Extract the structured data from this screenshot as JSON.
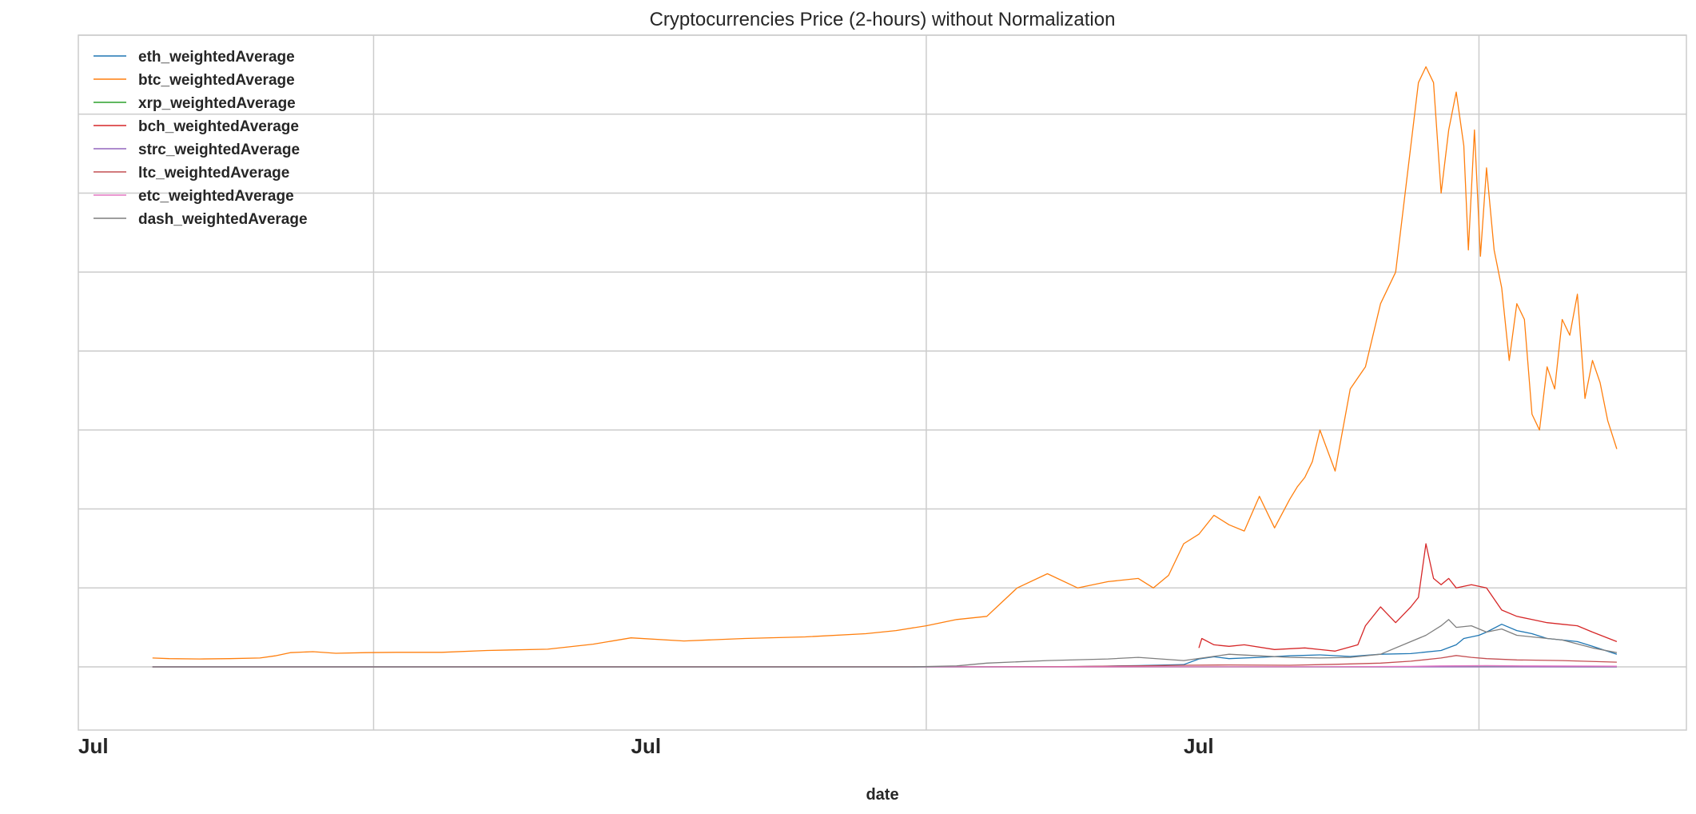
{
  "chart_data": {
    "type": "line",
    "title": "Cryptocurrencies Price (2-hours) without Normalization",
    "xlabel": "date",
    "ylabel": "",
    "x_tick_labels": [
      "Jul",
      "Jul",
      "Jul"
    ],
    "x_tick_values": [
      0,
      365,
      730
    ],
    "x_major_grid": [
      195,
      560,
      925
    ],
    "xlim": [
      0,
      1062
    ],
    "ylim": [
      -2000,
      20000
    ],
    "ygrid": [
      0,
      2500,
      5000,
      7500,
      10000,
      12500,
      15000,
      17500,
      20000
    ],
    "grid": true,
    "legend_position": "upper-left",
    "x_unit": "days since first Jul tick",
    "series": [
      {
        "name": "eth_weightedAverage",
        "color": "#1f77b4",
        "x": [
          49,
          600,
          620,
          640,
          660,
          680,
          700,
          730,
          740,
          750,
          760,
          780,
          800,
          820,
          840,
          860,
          880,
          900,
          910,
          915,
          920,
          925,
          930,
          940,
          950,
          960,
          970,
          980,
          990,
          1000,
          1016
        ],
        "values": [
          0,
          0,
          2,
          5,
          10,
          25,
          40,
          70,
          250,
          320,
          260,
          300,
          350,
          380,
          330,
          400,
          420,
          520,
          700,
          900,
          950,
          1000,
          1100,
          1350,
          1150,
          1050,
          900,
          850,
          800,
          650,
          400
        ]
      },
      {
        "name": "btc_weightedAverage",
        "color": "#ff7f0e",
        "x": [
          49,
          60,
          80,
          100,
          120,
          130,
          140,
          155,
          170,
          190,
          210,
          240,
          270,
          310,
          340,
          365,
          400,
          440,
          480,
          520,
          540,
          560,
          580,
          600,
          620,
          640,
          660,
          680,
          700,
          710,
          720,
          730,
          740,
          750,
          760,
          770,
          780,
          790,
          800,
          805,
          810,
          815,
          820,
          830,
          840,
          850,
          860,
          870,
          875,
          880,
          885,
          890,
          895,
          900,
          905,
          910,
          915,
          918,
          922,
          926,
          930,
          935,
          940,
          945,
          950,
          955,
          960,
          965,
          970,
          975,
          980,
          985,
          990,
          995,
          1000,
          1005,
          1010,
          1016
        ],
        "values": [
          280,
          260,
          250,
          260,
          280,
          350,
          450,
          480,
          430,
          450,
          460,
          460,
          520,
          560,
          720,
          920,
          820,
          900,
          950,
          1050,
          1150,
          1300,
          1500,
          1600,
          2500,
          2950,
          2500,
          2700,
          2800,
          2500,
          2900,
          3900,
          4200,
          4800,
          4500,
          4300,
          5400,
          4400,
          5300,
          5700,
          6000,
          6500,
          7500,
          6200,
          8800,
          9500,
          11500,
          12500,
          14500,
          16500,
          18500,
          19000,
          18500,
          15000,
          17000,
          18200,
          16500,
          13200,
          17000,
          13000,
          15800,
          13200,
          12000,
          9700,
          11500,
          11000,
          8000,
          7500,
          9500,
          8800,
          11000,
          10500,
          11800,
          8500,
          9700,
          9000,
          7800,
          6900
        ]
      },
      {
        "name": "xrp_weightedAverage",
        "color": "#2ca02c",
        "x": [
          49,
          600,
          700,
          800,
          850,
          880,
          900,
          930,
          960,
          1000,
          1016
        ],
        "values": [
          0,
          0,
          0,
          0,
          1,
          2,
          3,
          2,
          2,
          1,
          1
        ]
      },
      {
        "name": "bch_weightedAverage",
        "color": "#d62728",
        "x": [
          740,
          742,
          750,
          760,
          770,
          790,
          810,
          830,
          845,
          850,
          860,
          870,
          880,
          885,
          890,
          895,
          900,
          905,
          910,
          920,
          930,
          940,
          950,
          960,
          970,
          980,
          990,
          1000,
          1016
        ],
        "values": [
          600,
          900,
          700,
          650,
          700,
          550,
          600,
          500,
          700,
          1300,
          1900,
          1400,
          1900,
          2200,
          3900,
          2800,
          2600,
          2800,
          2500,
          2600,
          2500,
          1800,
          1600,
          1500,
          1400,
          1350,
          1300,
          1100,
          800
        ]
      },
      {
        "name": "strc_weightedAverage",
        "color": "#9467bd",
        "x": [
          49,
          600,
          700,
          800,
          850,
          880,
          900,
          930,
          960,
          1000,
          1016
        ],
        "values": [
          0,
          0,
          0,
          0,
          0,
          0,
          1,
          0,
          0,
          0,
          0
        ]
      },
      {
        "name": "ltc_weightedAverage",
        "color": "#c44e52",
        "x": [
          49,
          600,
          650,
          700,
          730,
          760,
          800,
          830,
          860,
          880,
          900,
          910,
          920,
          930,
          950,
          980,
          1016
        ],
        "values": [
          0,
          2,
          10,
          30,
          50,
          60,
          50,
          80,
          120,
          180,
          280,
          360,
          300,
          260,
          220,
          200,
          150
        ]
      },
      {
        "name": "etc_weightedAverage",
        "color": "#e377c2",
        "x": [
          49,
          600,
          700,
          800,
          850,
          880,
          900,
          930,
          960,
          1000,
          1016
        ],
        "values": [
          0,
          1,
          3,
          5,
          8,
          15,
          30,
          40,
          30,
          25,
          20
        ]
      },
      {
        "name": "dash_weightedAverage",
        "color": "#7f7f7f",
        "x": [
          49,
          550,
          580,
          600,
          640,
          680,
          700,
          730,
          760,
          780,
          800,
          820,
          840,
          860,
          880,
          890,
          900,
          905,
          910,
          920,
          930,
          940,
          950,
          960,
          980,
          1000,
          1016
        ],
        "values": [
          0,
          0,
          30,
          120,
          200,
          250,
          300,
          200,
          400,
          350,
          300,
          280,
          300,
          400,
          800,
          1000,
          1300,
          1500,
          1250,
          1300,
          1100,
          1200,
          1000,
          950,
          850,
          600,
          450
        ]
      }
    ]
  }
}
